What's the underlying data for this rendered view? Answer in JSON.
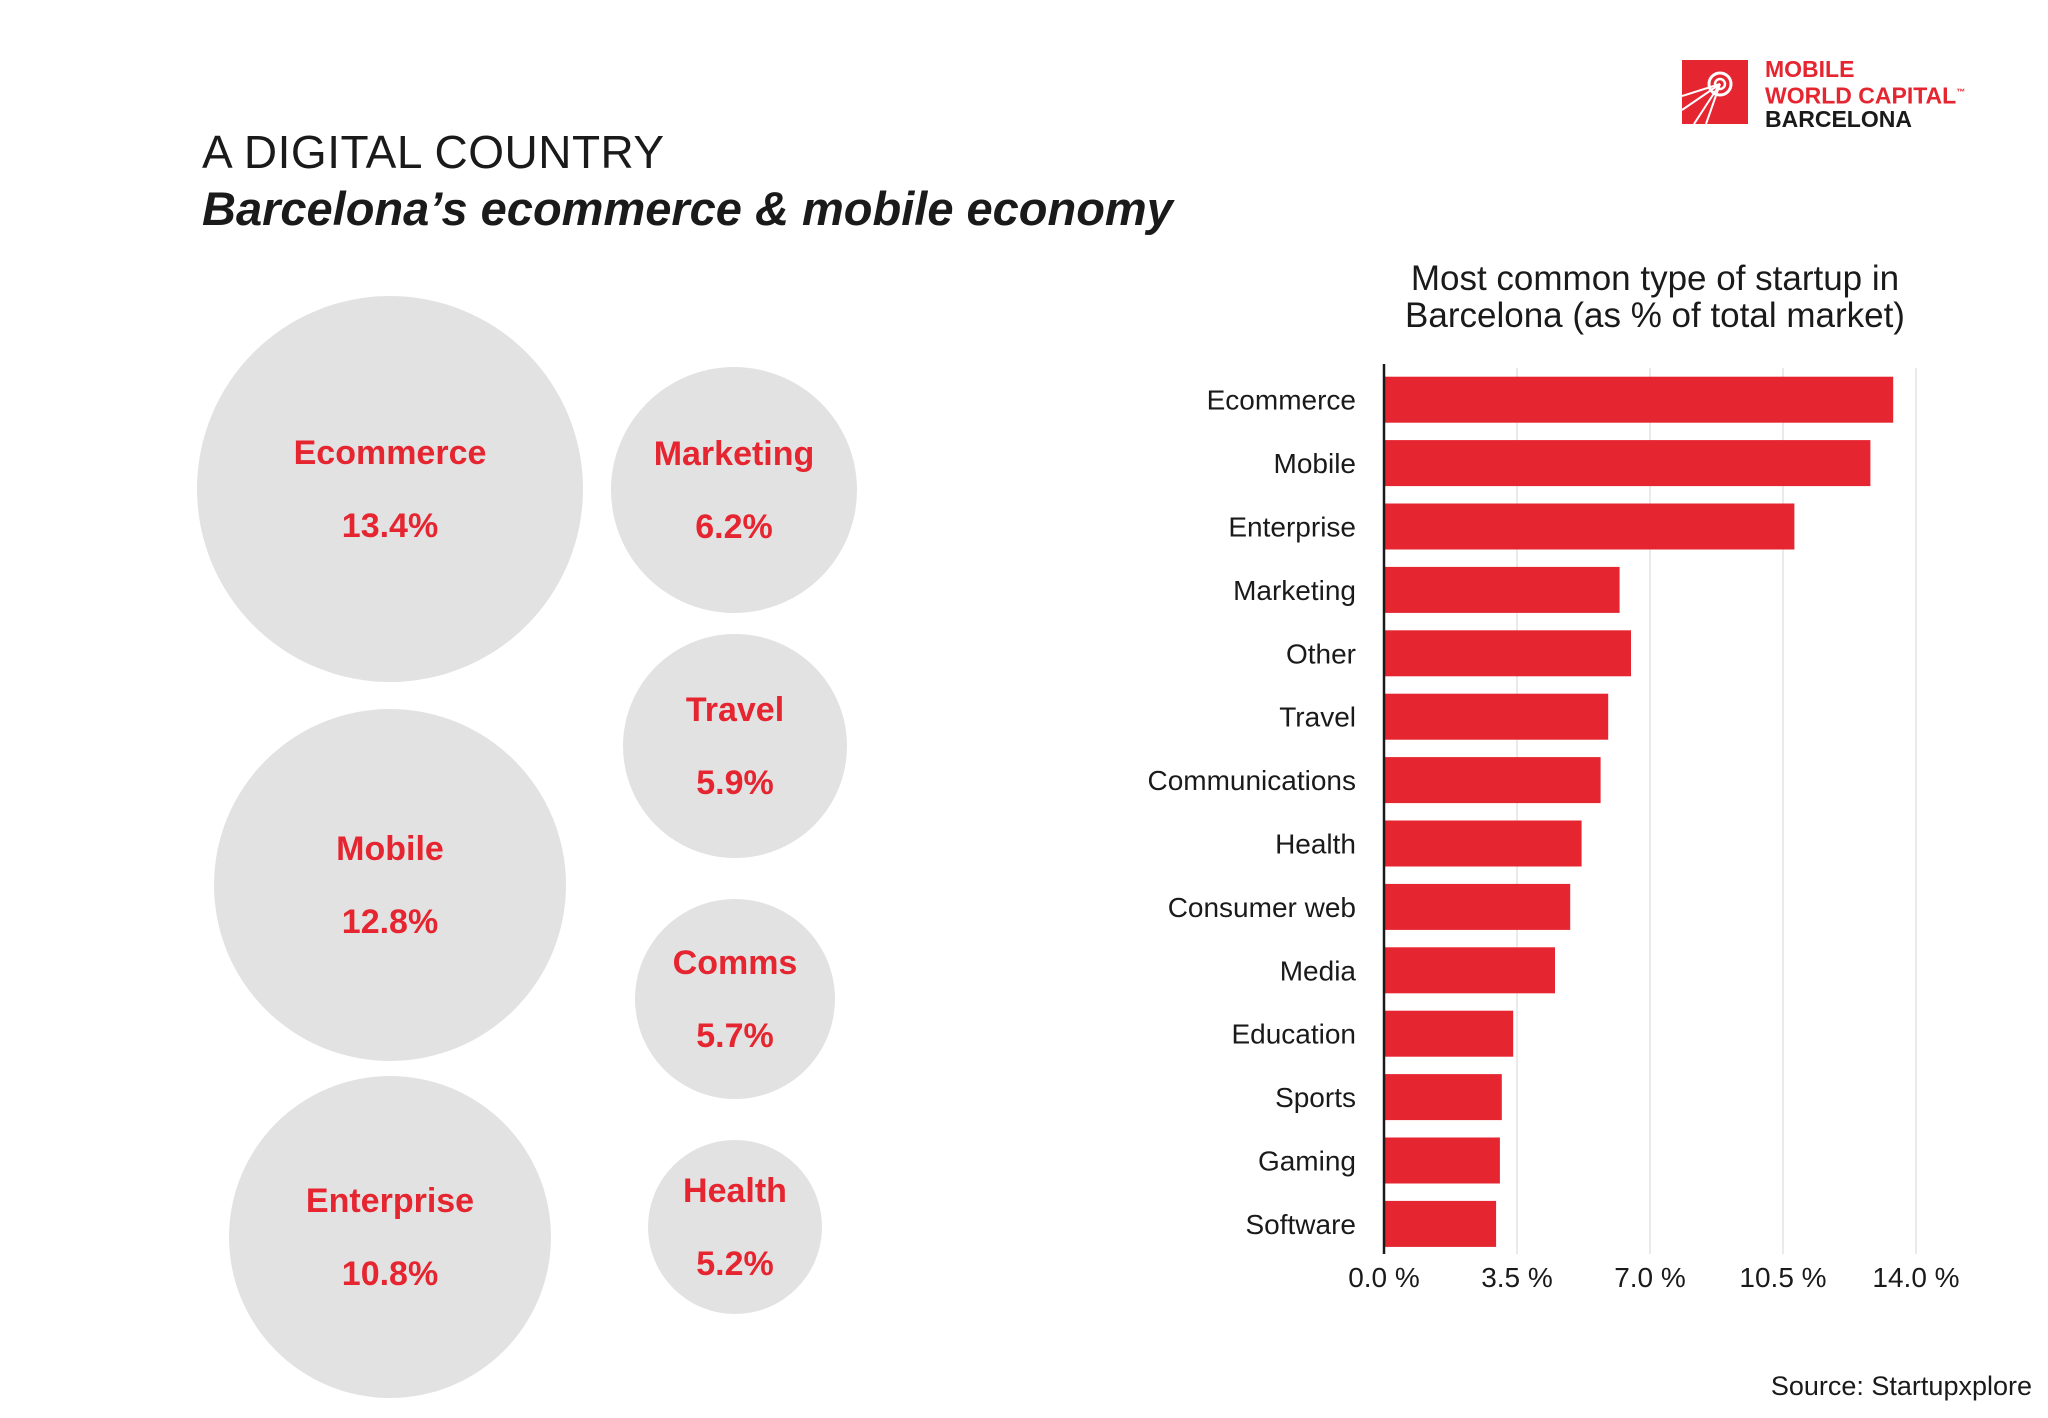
{
  "header": {
    "kicker": "A DIGITAL COUNTRY",
    "title": "Barcelona’s ecommerce & mobile economy"
  },
  "logo": {
    "line1": "MOBILE",
    "line2": "WORLD CAPITAL",
    "line3": "BARCELONA",
    "tm": "™"
  },
  "bubbles": [
    {
      "name": "Ecommerce",
      "value": "13.4%"
    },
    {
      "name": "Mobile",
      "value": "12.8%"
    },
    {
      "name": "Enterprise",
      "value": "10.8%"
    },
    {
      "name": "Marketing",
      "value": "6.2%"
    },
    {
      "name": "Travel",
      "value": "5.9%"
    },
    {
      "name": "Comms",
      "value": "5.7%"
    },
    {
      "name": "Health",
      "value": "5.2%"
    }
  ],
  "chart_data": {
    "type": "bar",
    "orientation": "horizontal",
    "title_line1": "Most common type of startup in",
    "title_line2": "Barcelona (as % of total market)",
    "categories": [
      "Ecommerce",
      "Mobile",
      "Enterprise",
      "Marketing",
      "Other",
      "Travel",
      "Communications",
      "Health",
      "Consumer web",
      "Media",
      "Education",
      "Sports",
      "Gaming",
      "Software"
    ],
    "values": [
      13.4,
      12.8,
      10.8,
      6.2,
      6.5,
      5.9,
      5.7,
      5.2,
      4.9,
      4.5,
      3.4,
      3.1,
      3.05,
      2.95
    ],
    "xlim": [
      0,
      14
    ],
    "xticks": [
      "0.0 %",
      "3.5 %",
      "7.0 %",
      "10.5 %",
      "14.0 %"
    ],
    "xtick_values": [
      0,
      3.5,
      7.0,
      10.5,
      14.0
    ],
    "bar_color": "#e52530",
    "grid": true
  },
  "source": "Source: Startupxplore"
}
